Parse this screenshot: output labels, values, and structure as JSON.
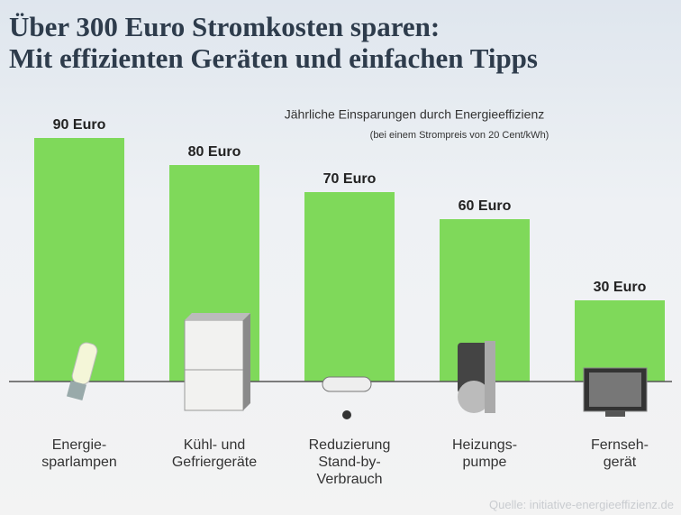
{
  "chart_data": {
    "type": "bar",
    "title": "Über 300 Euro Stromkosten sparen:\nMit effizienten Geräten und einfachen Tipps",
    "subtitle": "Jährliche Einsparungen durch Energieeffizienz",
    "note": "(bei einem Strompreis von 20 Cent/kWh)",
    "categories": [
      "Energie-\nsparlampen",
      "Kühl- und\nGefriergeräte",
      "Reduzierung\nStand-by-\nVerbrauch",
      "Heizungs-\npumpe",
      "Fernseh-\ngerät"
    ],
    "values": [
      90,
      80,
      70,
      60,
      30
    ],
    "value_labels": [
      "90 Euro",
      "80 Euro",
      "70 Euro",
      "60 Euro",
      "30 Euro"
    ],
    "color": "#7fd95a",
    "source": "Quelle: initiative-energieeffizienz.de"
  }
}
